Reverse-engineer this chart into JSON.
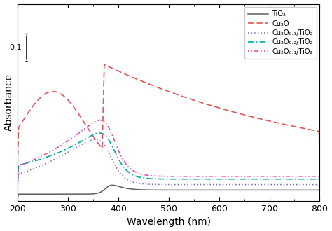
{
  "xlabel": "Wavelength (nm)",
  "ylabel": "Absorbance",
  "xlim": [
    200,
    800
  ],
  "ylim": [
    0,
    0.72
  ],
  "legend_entries": [
    "TiO₂",
    "Cu₂O",
    "Cu₂O₀.₃/TiO₂",
    "Cu₂O₀.₂/TiO₂",
    "Cu₂O₀.₁/TiO₂"
  ],
  "line_colors": [
    "#606060",
    "#e05555",
    "#8060c0",
    "#00aaaa",
    "#dd40aa"
  ],
  "scale_bar_label": "0.1"
}
